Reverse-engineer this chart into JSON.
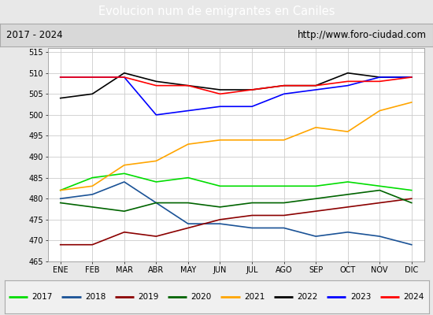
{
  "title": "Evolucion num de emigrantes en Caniles",
  "subtitle_left": "2017 - 2024",
  "subtitle_right": "http://www.foro-ciudad.com",
  "x_labels": [
    "ENE",
    "FEB",
    "MAR",
    "ABR",
    "MAY",
    "JUN",
    "JUL",
    "AGO",
    "SEP",
    "OCT",
    "NOV",
    "DIC"
  ],
  "ylim": [
    465,
    516
  ],
  "yticks": [
    465,
    470,
    475,
    480,
    485,
    490,
    495,
    500,
    505,
    510,
    515
  ],
  "series": {
    "2017": {
      "color": "#00dd00",
      "data": [
        482,
        485,
        486,
        484,
        485,
        483,
        483,
        483,
        483,
        484,
        483,
        482
      ]
    },
    "2018": {
      "color": "#1a5296",
      "data": [
        480,
        481,
        484,
        479,
        474,
        474,
        473,
        473,
        471,
        472,
        471,
        469
      ]
    },
    "2019": {
      "color": "#8b0000",
      "data": [
        469,
        469,
        472,
        471,
        473,
        475,
        476,
        476,
        477,
        478,
        479,
        480
      ]
    },
    "2020": {
      "color": "#006400",
      "data": [
        479,
        478,
        477,
        479,
        479,
        478,
        479,
        479,
        480,
        481,
        482,
        479
      ]
    },
    "2021": {
      "color": "#ffa500",
      "data": [
        482,
        483,
        488,
        489,
        493,
        494,
        494,
        494,
        497,
        496,
        501,
        503
      ]
    },
    "2022": {
      "color": "#000000",
      "data": [
        504,
        505,
        510,
        508,
        507,
        506,
        506,
        507,
        507,
        510,
        509,
        509
      ]
    },
    "2023": {
      "color": "#0000ff",
      "data": [
        509,
        509,
        509,
        500,
        501,
        502,
        502,
        505,
        506,
        507,
        509,
        509
      ]
    },
    "2024": {
      "color": "#ff0000",
      "data": [
        509,
        509,
        509,
        507,
        507,
        505,
        506,
        507,
        507,
        508,
        508,
        509
      ]
    }
  },
  "background_color": "#e8e8e8",
  "plot_bg_color": "#ffffff",
  "title_bg_color": "#4f81c7",
  "title_text_color": "#ffffff",
  "grid_color": "#cccccc",
  "subtitle_box_color": "#d8d8d8"
}
